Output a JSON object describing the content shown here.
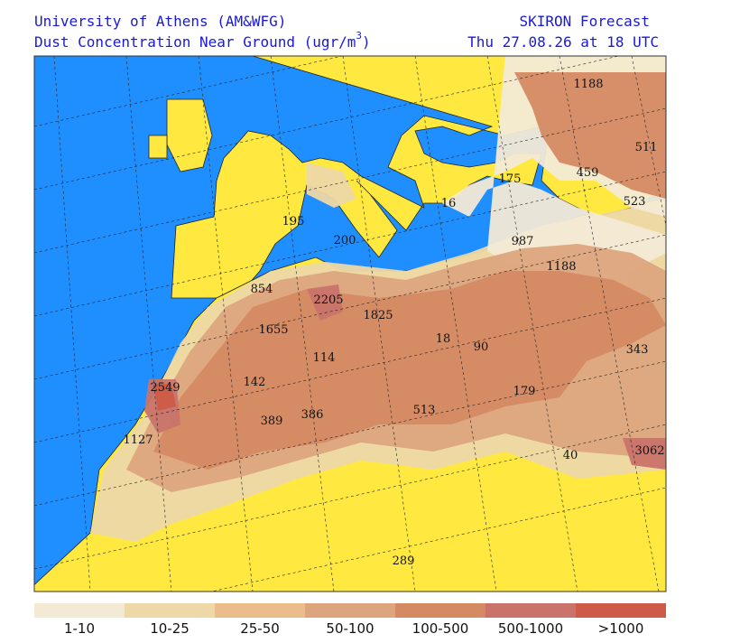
{
  "header": {
    "left_title": "University of Athens (AM&WFG)",
    "left_subtitle": "Dust Concentration Near Ground (ugr/m",
    "superscript": "3",
    "subtitle_close": ")",
    "right_title": "SKIRON Forecast",
    "right_subtitle": "Thu 27.08.26 at 18 UTC"
  },
  "map": {
    "sea_color": "#1f8fff",
    "land_color": "#ffe940",
    "labels": [
      "1188",
      "511",
      "459",
      "523",
      "175",
      "16",
      "987",
      "1188",
      "195",
      "200",
      "854",
      "2205",
      "1825",
      "1655",
      "18",
      "90",
      "114",
      "343",
      "2549",
      "142",
      "179",
      "386",
      "389",
      "513",
      "1127",
      "40",
      "3062",
      "289"
    ]
  },
  "legend": [
    {
      "label": "1-10",
      "color": "#f3ead6"
    },
    {
      "label": "10-25",
      "color": "#eed8a8"
    },
    {
      "label": "25-50",
      "color": "#ebbc8c"
    },
    {
      "label": "50-100",
      "color": "#dca57e"
    },
    {
      "label": "100-500",
      "color": "#d48a63"
    },
    {
      "label": "500-1000",
      "color": "#c9736a"
    },
    {
      "label": ">1000",
      "color": "#cc5c48"
    }
  ]
}
